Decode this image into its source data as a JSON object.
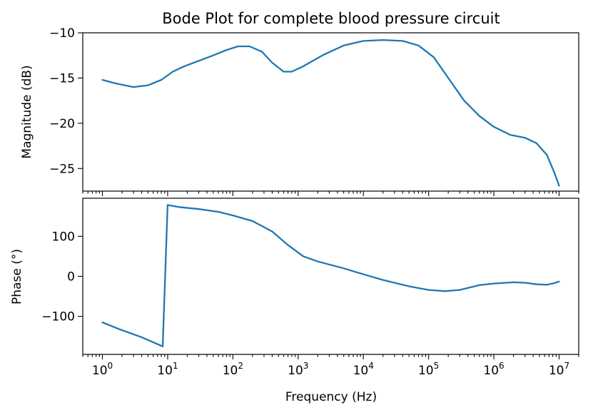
{
  "chart_data": [
    {
      "type": "line",
      "title": "Bode Plot for complete blood pressure circuit",
      "xlabel": "",
      "ylabel": "Magnitude (dB)",
      "xscale": "log",
      "xlim": [
        0.5,
        20000000
      ],
      "ylim": [
        -27.5,
        -10
      ],
      "yticks": [
        -10,
        -15,
        -20,
        -25
      ],
      "ytick_labels": [
        "−10",
        "−15",
        "−20",
        "−25"
      ],
      "grid": false,
      "series": [
        {
          "color": "#1f77b4",
          "points": [
            [
              1,
              -15.2
            ],
            [
              1.6,
              -15.6
            ],
            [
              3,
              -16.0
            ],
            [
              5,
              -15.8
            ],
            [
              8,
              -15.2
            ],
            [
              12,
              -14.3
            ],
            [
              18,
              -13.7
            ],
            [
              30,
              -13.1
            ],
            [
              50,
              -12.5
            ],
            [
              80,
              -11.9
            ],
            [
              120,
              -11.5
            ],
            [
              180,
              -11.5
            ],
            [
              280,
              -12.1
            ],
            [
              400,
              -13.3
            ],
            [
              600,
              -14.3
            ],
            [
              800,
              -14.3
            ],
            [
              1200,
              -13.7
            ],
            [
              2500,
              -12.4
            ],
            [
              5000,
              -11.4
            ],
            [
              10000,
              -10.9
            ],
            [
              20000,
              -10.8
            ],
            [
              40000,
              -10.9
            ],
            [
              70000,
              -11.4
            ],
            [
              120000,
              -12.7
            ],
            [
              200000,
              -15.0
            ],
            [
              350000,
              -17.5
            ],
            [
              600000,
              -19.2
            ],
            [
              1000000,
              -20.4
            ],
            [
              1800000,
              -21.3
            ],
            [
              3000000,
              -21.6
            ],
            [
              4500000,
              -22.2
            ],
            [
              6500000,
              -23.5
            ],
            [
              8500000,
              -25.5
            ],
            [
              10000000,
              -26.9
            ]
          ]
        }
      ]
    },
    {
      "type": "line",
      "title": "",
      "xlabel": "Frequency (Hz)",
      "ylabel": "Phase (°)",
      "xscale": "log",
      "xlim": [
        0.5,
        20000000
      ],
      "ylim": [
        -195,
        195
      ],
      "yticks": [
        100,
        0,
        -100
      ],
      "ytick_labels": [
        "100",
        "0",
        "−100"
      ],
      "xticks": [
        1,
        10,
        100,
        1000,
        10000,
        100000,
        1000000,
        10000000
      ],
      "xtick_labels": [
        {
          "base": "10",
          "exp": "0"
        },
        {
          "base": "10",
          "exp": "1"
        },
        {
          "base": "10",
          "exp": "2"
        },
        {
          "base": "10",
          "exp": "3"
        },
        {
          "base": "10",
          "exp": "4"
        },
        {
          "base": "10",
          "exp": "5"
        },
        {
          "base": "10",
          "exp": "6"
        },
        {
          "base": "10",
          "exp": "7"
        }
      ],
      "grid": false,
      "series": [
        {
          "color": "#1f77b4",
          "points": [
            [
              1,
              -115
            ],
            [
              1.8,
              -132
            ],
            [
              4,
              -152
            ],
            [
              8.4,
              -175
            ],
            [
              10,
              178
            ],
            [
              15,
              173
            ],
            [
              30,
              168
            ],
            [
              60,
              161
            ],
            [
              100,
              152
            ],
            [
              200,
              138
            ],
            [
              400,
              112
            ],
            [
              700,
              78
            ],
            [
              1200,
              50
            ],
            [
              2000,
              37
            ],
            [
              5000,
              20
            ],
            [
              10000,
              5
            ],
            [
              20000,
              -9
            ],
            [
              50000,
              -25
            ],
            [
              100000,
              -34
            ],
            [
              180000,
              -37
            ],
            [
              300000,
              -34
            ],
            [
              600000,
              -22
            ],
            [
              1000000,
              -18
            ],
            [
              2000000,
              -15
            ],
            [
              3000000,
              -16
            ],
            [
              4500000,
              -20
            ],
            [
              6500000,
              -21
            ],
            [
              8500000,
              -17
            ],
            [
              10000000,
              -13
            ]
          ]
        }
      ]
    }
  ]
}
